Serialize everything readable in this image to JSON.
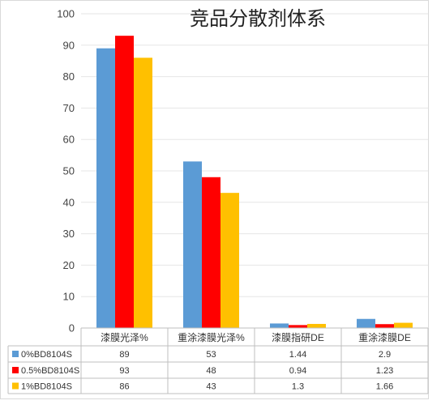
{
  "chart_data": {
    "type": "bar",
    "title": "竞品分散剂体系",
    "categories": [
      "漆膜光泽%",
      "重涂漆膜光泽%",
      "漆膜指研DE",
      "重涂漆膜DE"
    ],
    "ylim": [
      0,
      100
    ],
    "yticks": [
      0,
      10,
      20,
      30,
      40,
      50,
      60,
      70,
      80,
      90,
      100
    ],
    "grid": true,
    "legend": "data-table-left",
    "series": [
      {
        "name": "0%BD8104S",
        "color": "#5B9BD5",
        "values": [
          89,
          53,
          1.44,
          2.9
        ],
        "labels": [
          "89",
          "53",
          "1.44",
          "2.9"
        ]
      },
      {
        "name": "0.5%BD8104S",
        "color": "#FF0000",
        "values": [
          93,
          48,
          0.94,
          1.23
        ],
        "labels": [
          "93",
          "48",
          "0.94",
          "1.23"
        ]
      },
      {
        "name": "1%BD8104S",
        "color": "#FFC000",
        "values": [
          86,
          43,
          1.3,
          1.66
        ],
        "labels": [
          "86",
          "43",
          "1.3",
          "1.66"
        ]
      }
    ]
  }
}
